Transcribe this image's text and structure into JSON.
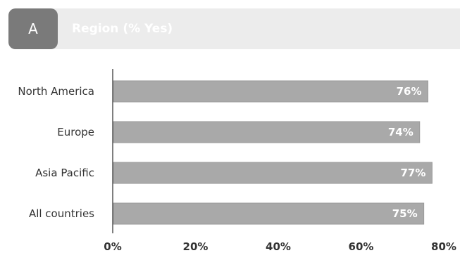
{
  "header": {
    "badge": "A",
    "title": "Region (% Yes)"
  },
  "colors": {
    "bar": "#a9a9a9",
    "axis": "#555555"
  },
  "chart_data": {
    "type": "bar",
    "orientation": "horizontal",
    "title": "Region (% Yes)",
    "categories": [
      "North America",
      "Europe",
      "Asia Pacific",
      "All countries"
    ],
    "values": [
      76,
      74,
      77,
      75
    ],
    "value_labels": [
      "76%",
      "74%",
      "77%",
      "75%"
    ],
    "xlim": [
      0,
      80
    ],
    "x_ticks": [
      "0%",
      "20%",
      "40%",
      "60%",
      "80%"
    ],
    "grid": false,
    "legend": "none"
  }
}
